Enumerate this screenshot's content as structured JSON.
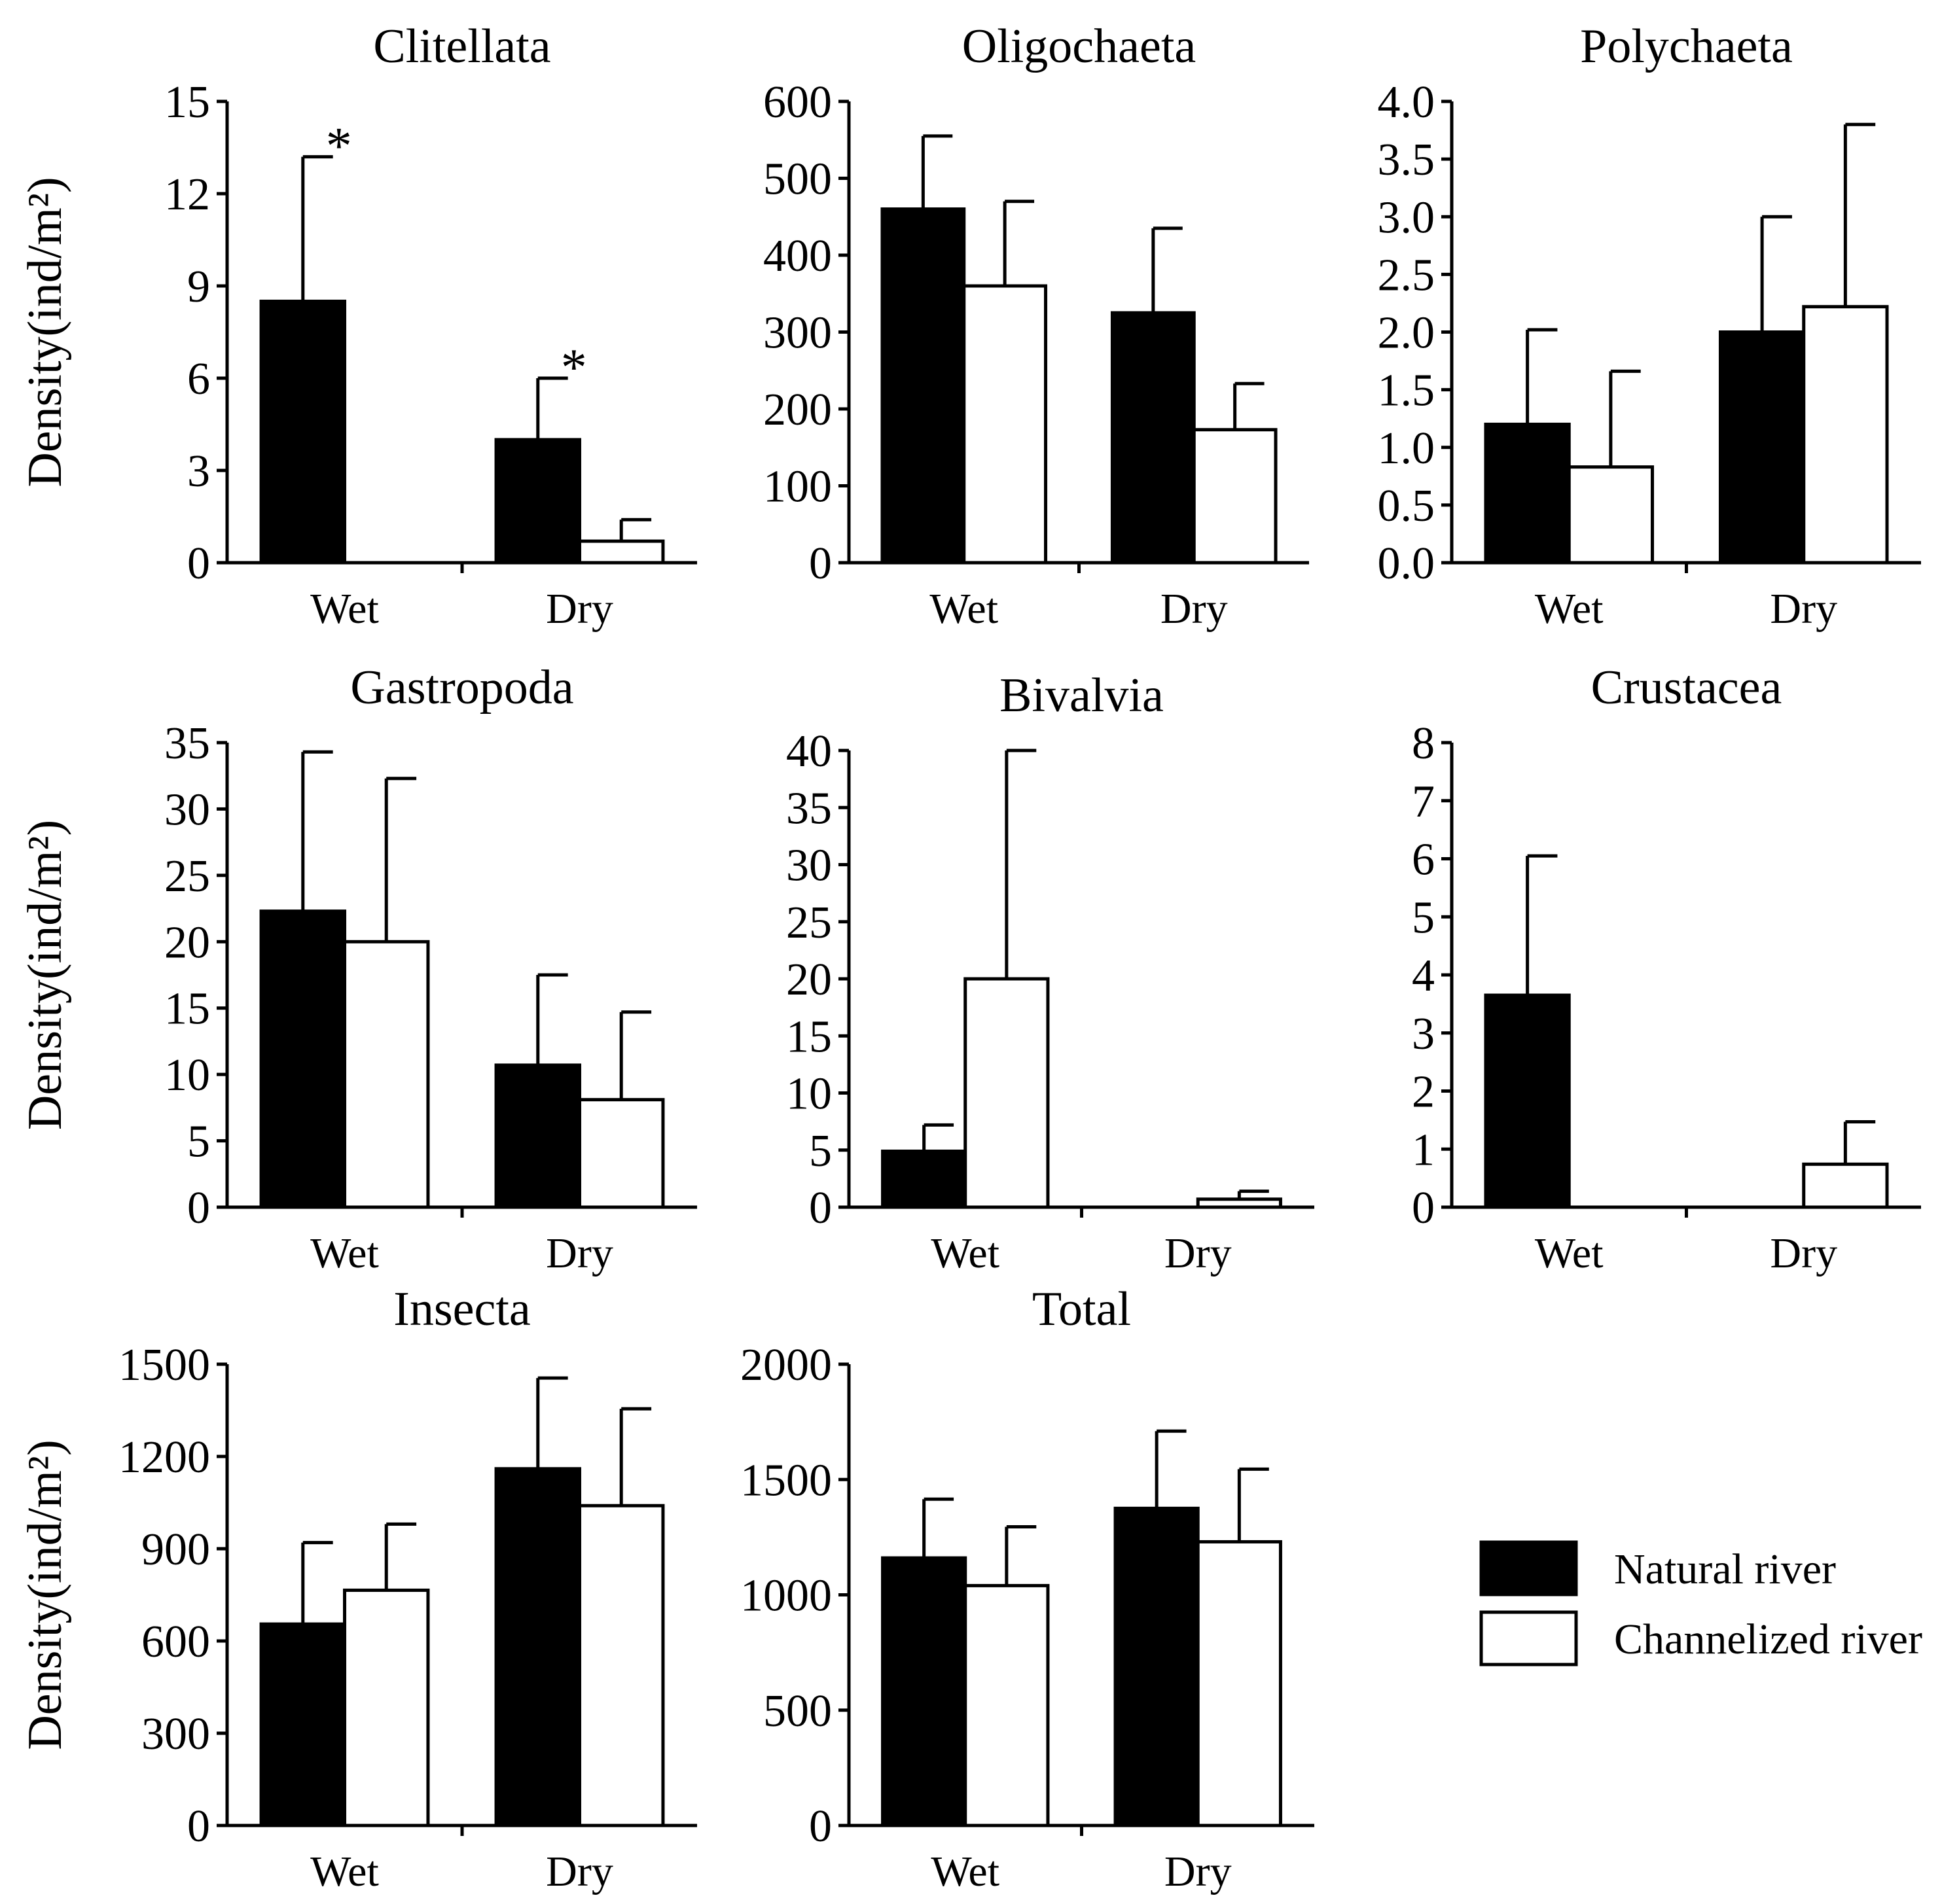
{
  "legend": {
    "items": [
      {
        "label": "Natural river",
        "color": "#000000"
      },
      {
        "label": "Channelized river",
        "color": "#ffffff"
      }
    ],
    "placement": "bottom-right"
  },
  "chart_data": [
    {
      "type": "bar",
      "title": "Clitellata",
      "ylabel": "Density(ind/m²)",
      "categories": [
        "Wet",
        "Dry"
      ],
      "ylim": [
        0,
        15
      ],
      "yticks": [
        "0",
        "3",
        "6",
        "9",
        "12",
        "15"
      ],
      "series": [
        {
          "name": "Natural river",
          "values": [
            8.5,
            4.0
          ],
          "errors": [
            4.7,
            2.0
          ]
        },
        {
          "name": "Channelized river",
          "values": [
            0,
            0.7
          ],
          "errors": [
            0,
            0.7
          ]
        }
      ],
      "annotations": [
        {
          "category": "Wet",
          "series": "Natural river",
          "text": "*"
        },
        {
          "category": "Dry",
          "series": "Natural river",
          "text": "*"
        }
      ]
    },
    {
      "type": "bar",
      "title": "Oligochaeta",
      "ylabel": "",
      "categories": [
        "Wet",
        "Dry"
      ],
      "ylim": [
        0,
        600
      ],
      "yticks": [
        "0",
        "100",
        "200",
        "300",
        "400",
        "500",
        "600"
      ],
      "series": [
        {
          "name": "Natural river",
          "values": [
            460,
            325
          ],
          "errors": [
            95,
            110
          ]
        },
        {
          "name": "Channelized river",
          "values": [
            360,
            173
          ],
          "errors": [
            110,
            60
          ]
        }
      ]
    },
    {
      "type": "bar",
      "title": "Polychaeta",
      "ylabel": "",
      "categories": [
        "Wet",
        "Dry"
      ],
      "ylim": [
        0,
        4
      ],
      "yticks": [
        "0.0",
        "0.5",
        "1.0",
        "1.5",
        "2.0",
        "2.5",
        "3.0",
        "3.5",
        "4.0"
      ],
      "series": [
        {
          "name": "Natural river",
          "values": [
            1.2,
            2.0
          ],
          "errors": [
            0.82,
            1.0
          ]
        },
        {
          "name": "Channelized river",
          "values": [
            0.83,
            2.22
          ],
          "errors": [
            0.83,
            1.58
          ]
        }
      ]
    },
    {
      "type": "bar",
      "title": "Gastropoda",
      "ylabel": "Density(ind/m²)",
      "categories": [
        "Wet",
        "Dry"
      ],
      "ylim": [
        0,
        35
      ],
      "yticks": [
        "0",
        "5",
        "10",
        "15",
        "20",
        "25",
        "30",
        "35"
      ],
      "series": [
        {
          "name": "Natural river",
          "values": [
            22.3,
            10.7
          ],
          "errors": [
            12.0,
            6.8
          ]
        },
        {
          "name": "Channelized river",
          "values": [
            20.0,
            8.1
          ],
          "errors": [
            12.3,
            6.6
          ]
        }
      ]
    },
    {
      "type": "bar",
      "title": "Bivalvia",
      "ylabel": "",
      "categories": [
        "Wet",
        "Dry"
      ],
      "ylim": [
        0,
        40
      ],
      "yticks": [
        "0",
        "5",
        "10",
        "15",
        "20",
        "25",
        "30",
        "35",
        "40"
      ],
      "series": [
        {
          "name": "Natural river",
          "values": [
            4.9,
            0
          ],
          "errors": [
            2.3,
            0
          ]
        },
        {
          "name": "Channelized river",
          "values": [
            20.0,
            0.7
          ],
          "errors": [
            20.0,
            0.7
          ]
        }
      ]
    },
    {
      "type": "bar",
      "title": "Crustacea",
      "ylabel": "",
      "categories": [
        "Wet",
        "Dry"
      ],
      "ylim": [
        0,
        8
      ],
      "yticks": [
        "0",
        "1",
        "2",
        "3",
        "4",
        "5",
        "6",
        "7",
        "8"
      ],
      "series": [
        {
          "name": "Natural river",
          "values": [
            3.65,
            0
          ],
          "errors": [
            2.4,
            0
          ]
        },
        {
          "name": "Channelized river",
          "values": [
            0,
            0.74
          ],
          "errors": [
            0,
            0.73
          ]
        }
      ]
    },
    {
      "type": "bar",
      "title": "Insecta",
      "ylabel": "Density(ind/m²)",
      "categories": [
        "Wet",
        "Dry"
      ],
      "ylim": [
        0,
        1500
      ],
      "yticks": [
        "0",
        "300",
        "600",
        "900",
        "1200",
        "1500"
      ],
      "series": [
        {
          "name": "Natural river",
          "values": [
            655,
            1160
          ],
          "errors": [
            265,
            295
          ]
        },
        {
          "name": "Channelized river",
          "values": [
            765,
            1040
          ],
          "errors": [
            215,
            315
          ]
        }
      ]
    },
    {
      "type": "bar",
      "title": "Total",
      "ylabel": "",
      "categories": [
        "Wet",
        "Dry"
      ],
      "ylim": [
        0,
        2000
      ],
      "yticks": [
        "0",
        "500",
        "1000",
        "1500",
        "2000"
      ],
      "series": [
        {
          "name": "Natural river",
          "values": [
            1160,
            1375
          ],
          "errors": [
            255,
            335
          ]
        },
        {
          "name": "Channelized river",
          "values": [
            1040,
            1230
          ],
          "errors": [
            255,
            315
          ]
        }
      ]
    }
  ]
}
